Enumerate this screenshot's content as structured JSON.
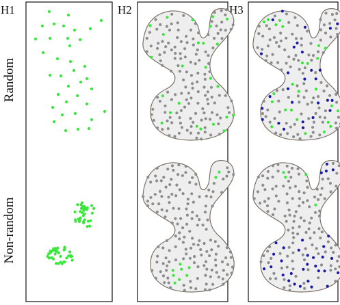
{
  "panels": {
    "h1": "H1",
    "h2": "H2",
    "h3": "H3"
  },
  "rows": {
    "random": "Random",
    "nonrandom": "Non-random"
  },
  "colors": {
    "green": "#38e838",
    "gray": "#8c8c8c",
    "blue": "#1a1aa8",
    "shape_fill": "#eeeeee",
    "shape_stroke": "#7a6f67",
    "frame": "#111111"
  }
}
